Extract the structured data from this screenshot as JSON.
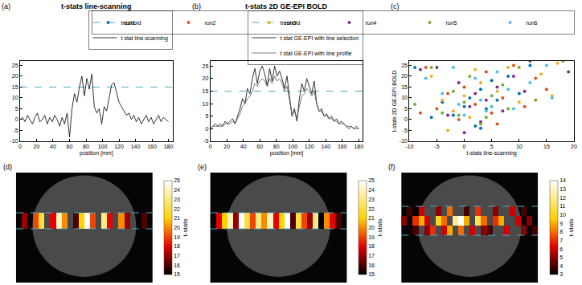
{
  "chart_data": [
    {
      "type": "line",
      "title": "t-stats line-scanning",
      "annotations": [
        "(a)"
      ],
      "x_label": "position [mm]",
      "x": [
        0,
        3,
        6,
        9,
        12,
        15,
        18,
        21,
        24,
        27,
        30,
        33,
        36,
        39,
        42,
        45,
        48,
        51,
        54,
        57,
        60,
        63,
        66,
        69,
        72,
        75,
        78,
        81,
        84,
        87,
        90,
        93,
        96,
        99,
        102,
        105,
        108,
        111,
        114,
        117,
        120,
        123,
        126,
        129,
        132,
        135,
        138,
        141,
        144,
        147,
        150,
        153,
        156,
        159,
        162,
        165,
        168,
        171,
        174,
        177,
        180
      ],
      "series": [
        {
          "name": "t stat line-scanning",
          "color": "#000000",
          "line_style": "solid",
          "values": [
            0,
            1,
            -1,
            2,
            0,
            -2,
            1,
            3,
            -1,
            0,
            2,
            -2,
            1,
            -1,
            2,
            0,
            -3,
            1,
            -2,
            3,
            -8,
            5,
            12,
            8,
            15,
            20,
            11,
            19,
            14,
            21,
            6,
            3,
            5,
            -2,
            6,
            4,
            10,
            16,
            17,
            12,
            8,
            6,
            4,
            2,
            3,
            0,
            2,
            -1,
            1,
            -2,
            0,
            2,
            -1,
            1,
            -2,
            0,
            2,
            -1,
            1,
            0,
            -1
          ]
        }
      ],
      "threshold": {
        "name": "treshold",
        "value": 15,
        "color": "#4BACC6",
        "line_style": "dash"
      },
      "xlim": [
        0,
        185
      ],
      "xticks": [
        0,
        20,
        40,
        60,
        80,
        100,
        120,
        140,
        160,
        180
      ],
      "ylim": [
        -10,
        27
      ],
      "yticks": [
        -10,
        -5,
        0,
        5,
        10,
        15,
        20,
        25
      ],
      "grid": false,
      "legend": "top"
    },
    {
      "type": "line",
      "title": "t-stats 2D GE-EPI BOLD",
      "annotations": [
        "(b)"
      ],
      "x_label": "position [mm]",
      "x": [
        0,
        3,
        6,
        9,
        12,
        15,
        18,
        21,
        24,
        27,
        30,
        33,
        36,
        39,
        42,
        45,
        48,
        51,
        54,
        57,
        60,
        63,
        66,
        69,
        72,
        75,
        78,
        81,
        84,
        87,
        90,
        93,
        96,
        99,
        102,
        105,
        108,
        111,
        114,
        117,
        120,
        123,
        126,
        129,
        132,
        135,
        138,
        141,
        144,
        147,
        150,
        153,
        156,
        159,
        162,
        165,
        168,
        171,
        174,
        177,
        180
      ],
      "series": [
        {
          "name": "t stat GE-EPI with line selection",
          "color": "#000000",
          "line_style": "solid",
          "values": [
            0,
            1,
            2,
            1,
            2,
            1,
            3,
            2,
            3,
            4,
            2,
            5,
            8,
            12,
            10,
            16,
            14,
            20,
            24,
            18,
            23,
            25,
            22,
            17,
            24,
            19,
            25,
            21,
            23,
            20,
            16,
            21,
            12,
            5,
            8,
            3,
            12,
            18,
            15,
            20,
            17,
            14,
            19,
            10,
            7,
            8,
            5,
            6,
            4,
            5,
            3,
            4,
            2,
            3,
            2,
            1,
            0,
            1,
            0,
            1,
            0
          ]
        },
        {
          "name": "t stat GE-EPI with line profile",
          "color": "#555555",
          "line_style": "solid",
          "values": [
            0,
            1,
            1,
            1,
            1,
            1,
            2,
            2,
            2,
            3,
            2,
            4,
            6,
            9,
            10,
            12,
            13,
            15,
            18,
            17,
            19,
            20,
            19,
            17,
            20,
            18,
            21,
            19,
            20,
            18,
            15,
            17,
            11,
            6,
            7,
            4,
            9,
            13,
            14,
            16,
            15,
            13,
            15,
            10,
            7,
            7,
            5,
            5,
            4,
            4,
            3,
            3,
            2,
            2,
            2,
            1,
            1,
            1,
            0,
            0,
            0
          ]
        }
      ],
      "threshold": {
        "name": "treshold",
        "value": 15,
        "color": "#4BACC6",
        "line_style": "dash"
      },
      "xlim": [
        0,
        185
      ],
      "xticks": [
        0,
        20,
        40,
        60,
        80,
        100,
        120,
        140,
        160,
        180
      ],
      "ylim": [
        -5,
        27
      ],
      "yticks": [
        -5,
        0,
        5,
        10,
        15,
        20,
        25
      ],
      "grid": false,
      "legend": "top"
    },
    {
      "type": "scatter",
      "annotations": [
        "(c)"
      ],
      "x_label": "t-stats line-scanning",
      "y_label": "t-stats 2D GE-EPI BOLD",
      "marker": "circle",
      "series": [
        {
          "name": "run1",
          "color": "#0072BD",
          "x": [
            -9,
            -4,
            -2,
            0,
            1,
            2,
            3,
            4,
            5,
            6,
            8,
            10,
            12,
            -6,
            3
          ],
          "values": [
            24,
            8,
            2,
            6,
            10,
            -3,
            14,
            5,
            18,
            9,
            20,
            12,
            25,
            1,
            -4
          ]
        },
        {
          "name": "run2",
          "color": "#D95319",
          "x": [
            -7,
            -5,
            -3,
            -1,
            0,
            2,
            4,
            5,
            7,
            9,
            11,
            13,
            15,
            -8,
            6
          ],
          "values": [
            24,
            5,
            12,
            0,
            15,
            7,
            22,
            3,
            10,
            25,
            6,
            19,
            14,
            3,
            -2
          ]
        },
        {
          "name": "run3",
          "color": "#EDB120",
          "x": [
            -6,
            -4,
            -2,
            0,
            1,
            3,
            5,
            6,
            8,
            10,
            14,
            16,
            17,
            -3,
            2
          ],
          "values": [
            20,
            9,
            4,
            11,
            1,
            17,
            6,
            13,
            24,
            8,
            21,
            11,
            26,
            -5,
            23
          ]
        },
        {
          "name": "run4",
          "color": "#7E2F8E",
          "x": [
            -5,
            -3,
            -1,
            1,
            2,
            3,
            4,
            6,
            7,
            9,
            11,
            12,
            19,
            -8,
            0
          ],
          "values": [
            24,
            2,
            17,
            6,
            12,
            -1,
            9,
            15,
            4,
            20,
            13,
            27,
            22,
            23,
            -6
          ]
        },
        {
          "name": "run5",
          "color": "#77AC30",
          "x": [
            -9,
            -6,
            -4,
            -2,
            0,
            1,
            3,
            5,
            7,
            8,
            10,
            13,
            18,
            -1,
            4
          ],
          "values": [
            7,
            24,
            3,
            13,
            8,
            20,
            -2,
            11,
            16,
            5,
            24,
            9,
            27,
            2,
            1
          ]
        },
        {
          "name": "run6",
          "color": "#4DBEEE",
          "x": [
            -4,
            -2,
            -1,
            0,
            2,
            3,
            4,
            6,
            8,
            9,
            12,
            15,
            16,
            -7,
            5
          ],
          "values": [
            12,
            24,
            7,
            2,
            19,
            9,
            4,
            22,
            14,
            5,
            17,
            25,
            10,
            19,
            6
          ]
        }
      ],
      "xlim": [
        -10,
        20
      ],
      "xticks": [
        -10,
        -5,
        0,
        5,
        10,
        15,
        20
      ],
      "ylim": [
        -10,
        27
      ],
      "yticks": [
        -10,
        -5,
        0,
        5,
        10,
        15,
        20,
        25
      ],
      "grid": false,
      "legend": "top"
    },
    {
      "type": "heatmap",
      "annotations": [
        "(d)"
      ],
      "color": "hot",
      "tick_labels": false,
      "cells": [
        [
          null,
          17,
          null,
          19,
          22,
          null,
          18,
          24,
          20,
          null,
          16,
          21,
          25,
          19,
          null,
          23,
          18,
          null,
          20,
          17,
          null,
          null,
          16,
          null
        ]
      ],
      "colorbar": {
        "title": "t-stats",
        "range": [
          15,
          25
        ],
        "ticks": [
          15,
          16,
          17,
          18,
          19,
          20,
          21,
          22,
          23,
          24,
          25
        ]
      }
    },
    {
      "type": "heatmap",
      "annotations": [
        "(e)"
      ],
      "color": "hot",
      "tick_labels": false,
      "cells": [
        [
          15,
          18,
          21,
          24,
          17,
          25,
          22,
          19,
          23,
          20,
          24,
          18,
          21,
          25,
          16,
          22,
          19,
          17,
          23,
          15,
          20,
          18,
          16,
          null
        ]
      ],
      "colorbar": {
        "title": "t-stats",
        "range": [
          15,
          25
        ],
        "ticks": [
          15,
          16,
          17,
          18,
          19,
          20,
          21,
          22,
          23,
          24,
          25
        ]
      }
    },
    {
      "type": "heatmap",
      "annotations": [
        "(f)"
      ],
      "color": "hot",
      "tick_labels": false,
      "cells": [
        [
          null,
          null,
          4,
          null,
          5,
          7,
          null,
          6,
          9,
          null,
          8,
          null,
          6,
          null,
          5,
          4,
          null,
          null,
          6,
          null,
          null,
          5,
          null,
          4
        ],
        [
          5,
          null,
          7,
          9,
          6,
          null,
          10,
          8,
          null,
          12,
          14,
          9,
          null,
          11,
          8,
          null,
          7,
          9,
          null,
          null,
          6,
          null,
          5,
          null
        ],
        [
          null,
          4,
          null,
          6,
          null,
          null,
          5,
          null,
          8,
          null,
          null,
          4,
          null,
          7,
          null,
          null,
          5,
          null,
          null,
          6,
          null,
          4,
          null,
          null
        ]
      ],
      "colorbar": {
        "title": "t-stats",
        "range": [
          3,
          14
        ],
        "ticks": [
          3,
          4,
          5,
          6,
          7,
          8,
          9,
          10,
          11,
          12,
          13,
          14
        ]
      }
    }
  ]
}
